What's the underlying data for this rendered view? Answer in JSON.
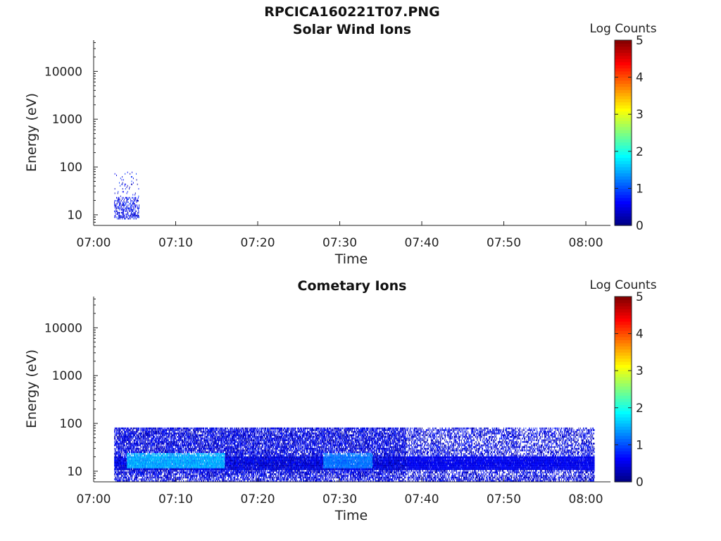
{
  "figure_title": "RPCICA160221T07.PNG",
  "colorbar": {
    "label": "Log Counts",
    "range": [
      0,
      5
    ],
    "ticks": [
      "0",
      "1",
      "2",
      "3",
      "4",
      "5"
    ],
    "colormap": "jet"
  },
  "chart_data": [
    {
      "type": "heatmap",
      "title": "Solar Wind Ions",
      "xlabel": "Time",
      "ylabel": "Energy (eV)",
      "x_ticks": [
        "07:00",
        "07:10",
        "07:20",
        "07:30",
        "07:40",
        "07:50",
        "08:00"
      ],
      "xlim": [
        "07:00",
        "08:03"
      ],
      "y_scale": "log",
      "y_ticks": [
        "10",
        "100",
        "1000",
        "10000"
      ],
      "ylim": [
        6,
        45000
      ],
      "data_extent": {
        "time": [
          "07:02.5",
          "07:05.5"
        ],
        "energy_eV": [
          8,
          80
        ]
      },
      "typical_log_counts": [
        0.1,
        1.0
      ],
      "description_value": "sparse low counts near 07:02-07:05, 8-80 eV"
    },
    {
      "type": "heatmap",
      "title": "Cometary Ions",
      "xlabel": "Time",
      "ylabel": "Energy (eV)",
      "x_ticks": [
        "07:00",
        "07:10",
        "07:20",
        "07:30",
        "07:40",
        "07:50",
        "08:00"
      ],
      "xlim": [
        "07:00",
        "08:03"
      ],
      "y_scale": "log",
      "y_ticks": [
        "10",
        "100",
        "1000",
        "10000"
      ],
      "ylim": [
        6,
        45000
      ],
      "data_extent": {
        "time": [
          "07:02.5",
          "08:01"
        ],
        "energy_eV": [
          6,
          82
        ]
      },
      "typical_log_counts": [
        0.1,
        1.7
      ],
      "peak_regions": [
        {
          "time": [
            "07:04",
            "07:16"
          ],
          "energy_eV": [
            12,
            25
          ],
          "log_counts": 1.6
        },
        {
          "time": [
            "07:28",
            "07:34"
          ],
          "energy_eV": [
            12,
            25
          ],
          "log_counts": 1.3
        }
      ]
    }
  ]
}
